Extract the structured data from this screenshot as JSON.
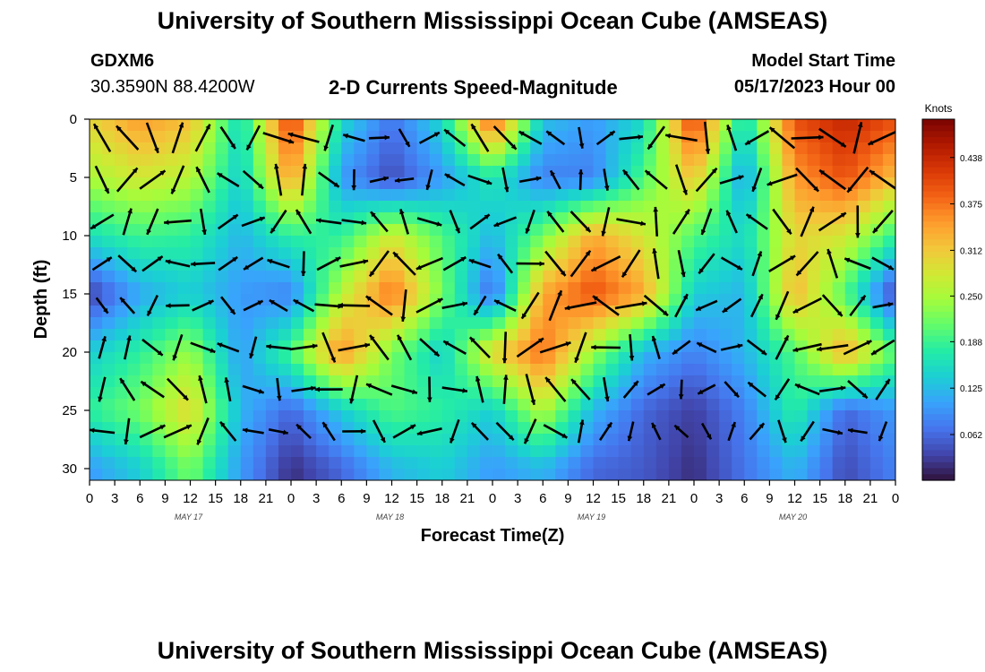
{
  "header": {
    "title": "University of Southern Mississippi Ocean Cube (AMSEAS)",
    "station_id": "GDXM6",
    "station_coords": "30.3590N  88.4200W",
    "plot_title": "2-D Currents Speed-Magnitude",
    "model_label": "Model Start Time",
    "model_time": "05/17/2023 Hour 00"
  },
  "footer": {
    "title": "University of Southern Mississippi Ocean Cube (AMSEAS)"
  },
  "chart_data": {
    "type": "heatmap",
    "xlabel": "Forecast Time(Z)",
    "ylabel": "Depth (ft)",
    "x_tick_labels": [
      "0",
      "3",
      "6",
      "9",
      "12",
      "15",
      "18",
      "21",
      "0",
      "3",
      "6",
      "9",
      "12",
      "15",
      "18",
      "21",
      "0",
      "3",
      "6",
      "9",
      "12",
      "15",
      "18",
      "21",
      "0",
      "3",
      "6",
      "9",
      "12",
      "15",
      "18",
      "21",
      "0"
    ],
    "x_range_hours": [
      0,
      96
    ],
    "day_labels": [
      {
        "label": "MAY 17",
        "hour": 12
      },
      {
        "label": "MAY 18",
        "hour": 36
      },
      {
        "label": "MAY 19",
        "hour": 60
      },
      {
        "label": "MAY 20",
        "hour": 84
      }
    ],
    "y_ticks": [
      0,
      5,
      10,
      15,
      20,
      25,
      30
    ],
    "y_range_ft": [
      0,
      31
    ],
    "y_inverted": true,
    "colorbar": {
      "unit": "Knots",
      "ticks": [
        "0.438",
        "0.375",
        "0.312",
        "0.250",
        "0.188",
        "0.125",
        "0.062"
      ],
      "range": [
        0,
        0.49
      ],
      "colors": [
        "#30123b",
        "#4145ab",
        "#4675ed",
        "#39a2fc",
        "#1bcfd4",
        "#24eca6",
        "#61fc6c",
        "#a4fc3b",
        "#d1e834",
        "#f3c63a",
        "#fe9b2d",
        "#f36315",
        "#d93806",
        "#b11901",
        "#7a0402"
      ]
    },
    "speed_knots": {
      "depths_ft": [
        0,
        5,
        10,
        15,
        20,
        25,
        30
      ],
      "hours": [
        0,
        6,
        12,
        18,
        24,
        30,
        36,
        42,
        48,
        54,
        60,
        66,
        72,
        78,
        84,
        90,
        96
      ],
      "rows": [
        [
          0.3,
          0.35,
          0.32,
          0.15,
          0.42,
          0.15,
          0.07,
          0.15,
          0.4,
          0.13,
          0.1,
          0.15,
          0.42,
          0.15,
          0.4,
          0.44,
          0.4
        ],
        [
          0.25,
          0.28,
          0.26,
          0.14,
          0.35,
          0.1,
          0.04,
          0.1,
          0.17,
          0.08,
          0.08,
          0.2,
          0.32,
          0.1,
          0.35,
          0.4,
          0.32
        ],
        [
          0.16,
          0.19,
          0.18,
          0.12,
          0.18,
          0.18,
          0.28,
          0.2,
          0.12,
          0.22,
          0.34,
          0.28,
          0.2,
          0.15,
          0.3,
          0.28,
          0.18
        ],
        [
          0.03,
          0.11,
          0.14,
          0.1,
          0.08,
          0.26,
          0.38,
          0.22,
          0.06,
          0.34,
          0.4,
          0.34,
          0.14,
          0.12,
          0.33,
          0.2,
          0.03
        ],
        [
          0.14,
          0.18,
          0.24,
          0.1,
          0.2,
          0.36,
          0.22,
          0.14,
          0.3,
          0.38,
          0.24,
          0.12,
          0.08,
          0.12,
          0.2,
          0.34,
          0.2
        ],
        [
          0.18,
          0.22,
          0.3,
          0.12,
          0.06,
          0.14,
          0.2,
          0.18,
          0.14,
          0.26,
          0.12,
          0.06,
          0.03,
          0.08,
          0.18,
          0.06,
          0.1
        ],
        [
          0.1,
          0.14,
          0.22,
          0.1,
          0.02,
          0.06,
          0.12,
          0.14,
          0.1,
          0.12,
          0.06,
          0.05,
          0.02,
          0.07,
          0.12,
          0.04,
          0.08
        ]
      ]
    }
  }
}
